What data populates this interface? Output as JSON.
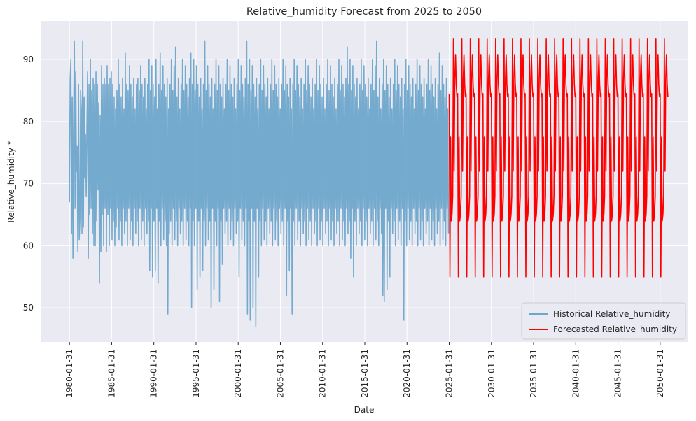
{
  "chart_data": {
    "type": "line",
    "title": "Relative_humidity Forecast from 2025 to 2050",
    "xlabel": "Date",
    "ylabel": "Relative_humidity °",
    "xlim": [
      "1976-09-01",
      "2053-06-01"
    ],
    "ylim": [
      44.5,
      96.2
    ],
    "x_ticks": [
      "1980-01-31",
      "1985-01-31",
      "1990-01-31",
      "1995-01-31",
      "2000-01-31",
      "2005-01-31",
      "2010-01-31",
      "2015-01-31",
      "2020-01-31",
      "2025-01-31",
      "2030-01-31",
      "2035-01-31",
      "2040-01-31",
      "2045-01-31",
      "2050-01-31"
    ],
    "y_ticks": [
      50,
      60,
      70,
      80,
      90
    ],
    "grid": true,
    "background": "#eaeaf2",
    "legend_position": "bottom-right",
    "series": [
      {
        "name": "Historical Relative_humidity",
        "color": "#6fa6cc",
        "date_range": [
          "1980-01-31",
          "2024-12-31"
        ],
        "frequency": "monthly",
        "approx_range": [
          47,
          93.5
        ],
        "typical_band": [
          60,
          90
        ],
        "values": [
          67,
          87,
          90,
          62,
          84,
          58,
          80,
          93,
          66,
          88,
          72,
          76,
          59,
          86,
          61,
          64,
          85,
          82,
          62,
          93,
          63,
          84,
          71,
          78,
          68,
          79,
          88,
          58,
          86,
          65,
          90,
          66,
          85,
          62,
          87,
          60,
          86,
          60,
          88,
          64,
          86,
          69,
          83,
          54,
          81,
          59,
          89,
          65,
          86,
          60,
          87,
          66,
          86,
          59,
          89,
          65,
          86,
          60,
          87,
          66,
          88,
          61,
          86,
          64,
          84,
          60,
          82,
          63,
          85,
          66,
          90,
          61,
          86,
          64,
          84,
          60,
          87,
          66,
          82,
          62,
          91,
          64,
          86,
          60,
          85,
          66,
          89,
          61,
          86,
          64,
          84,
          60,
          87,
          66,
          82,
          62,
          86,
          64,
          87,
          60,
          85,
          66,
          89,
          61,
          86,
          64,
          84,
          60,
          87,
          66,
          82,
          62,
          86,
          64,
          90,
          56,
          85,
          66,
          89,
          55,
          86,
          64,
          84,
          56,
          90,
          66,
          82,
          54,
          86,
          64,
          91,
          60,
          85,
          66,
          89,
          61,
          86,
          64,
          84,
          60,
          87,
          49,
          82,
          62,
          86,
          64,
          90,
          60,
          85,
          66,
          89,
          61,
          92,
          64,
          84,
          60,
          87,
          66,
          82,
          62,
          86,
          64,
          90,
          60,
          85,
          66,
          89,
          61,
          86,
          64,
          84,
          60,
          87,
          66,
          91,
          50,
          86,
          64,
          90,
          60,
          85,
          66,
          89,
          53,
          86,
          64,
          84,
          55,
          87,
          66,
          82,
          56,
          86,
          64,
          93,
          60,
          85,
          66,
          89,
          61,
          86,
          64,
          84,
          50,
          87,
          66,
          82,
          53,
          86,
          64,
          90,
          60,
          85,
          66,
          89,
          51,
          86,
          64,
          84,
          57,
          87,
          66,
          82,
          62,
          86,
          64,
          90,
          60,
          85,
          66,
          89,
          61,
          86,
          64,
          84,
          60,
          87,
          66,
          82,
          62,
          86,
          64,
          90,
          55,
          85,
          66,
          89,
          61,
          86,
          64,
          84,
          60,
          87,
          66,
          93,
          49,
          86,
          64,
          90,
          48,
          85,
          66,
          89,
          50,
          86,
          64,
          84,
          47,
          87,
          66,
          82,
          55,
          86,
          64,
          90,
          60,
          85,
          66,
          89,
          61,
          86,
          64,
          84,
          60,
          87,
          66,
          82,
          62,
          86,
          64,
          90,
          60,
          85,
          66,
          89,
          61,
          86,
          64,
          84,
          60,
          87,
          66,
          82,
          62,
          86,
          64,
          90,
          60,
          85,
          66,
          89,
          52,
          86,
          64,
          84,
          56,
          87,
          66,
          82,
          49,
          86,
          64,
          90,
          60,
          85,
          66,
          89,
          61,
          86,
          64,
          84,
          60,
          87,
          66,
          82,
          62,
          86,
          64,
          90,
          60,
          85,
          66,
          89,
          61,
          86,
          64,
          84,
          60,
          87,
          66,
          82,
          62,
          86,
          64,
          90,
          60,
          85,
          66,
          89,
          61,
          86,
          64,
          84,
          60,
          87,
          66,
          82,
          62,
          86,
          64,
          90,
          60,
          85,
          66,
          89,
          61,
          86,
          64,
          84,
          60,
          87,
          66,
          82,
          62,
          86,
          64,
          90,
          60,
          85,
          66,
          89,
          61,
          86,
          64,
          84,
          60,
          87,
          66,
          92,
          62,
          86,
          64,
          90,
          58,
          85,
          66,
          89,
          55,
          86,
          64,
          84,
          60,
          87,
          66,
          82,
          62,
          86,
          64,
          90,
          60,
          85,
          66,
          89,
          61,
          86,
          64,
          84,
          60,
          87,
          66,
          82,
          62,
          86,
          64,
          90,
          60,
          85,
          66,
          89,
          61,
          93,
          64,
          84,
          60,
          87,
          66,
          82,
          62,
          86,
          52,
          90,
          51,
          85,
          66,
          89,
          53,
          86,
          64,
          84,
          55,
          87,
          66,
          82,
          62,
          86,
          64,
          90,
          60,
          85,
          66,
          89,
          61,
          86,
          64,
          84,
          60,
          87,
          66,
          82,
          48,
          86,
          64,
          90,
          60,
          85,
          66,
          89,
          61,
          86,
          64,
          84,
          60,
          87,
          66,
          82,
          62,
          86,
          64,
          90,
          60,
          85,
          66,
          89,
          61,
          86,
          64,
          84,
          60,
          87,
          66,
          82,
          62,
          86,
          64,
          90,
          60,
          85,
          66,
          89,
          61,
          86,
          64,
          84,
          60,
          87,
          66,
          82,
          62,
          86,
          64,
          91,
          60,
          85,
          66,
          89,
          61,
          86,
          64,
          84,
          60,
          87,
          66,
          82,
          62
        ]
      },
      {
        "name": "Forecasted Relative_humidity",
        "color": "#ff0000",
        "date_range": [
          "2025-01-31",
          "2050-12-31"
        ],
        "frequency": "monthly",
        "seasonal_cycle": [
          84.5,
          55.0,
          77.5,
          64.0,
          65.0,
          68.0,
          93.3,
          72.0,
          87.0,
          90.8,
          86.0,
          84.0
        ]
      }
    ]
  }
}
